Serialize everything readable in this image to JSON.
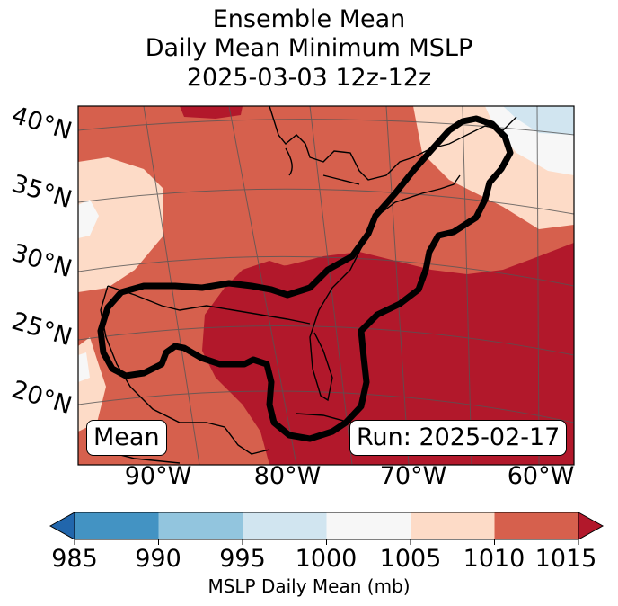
{
  "title": {
    "line1": "Ensemble Mean",
    "line2": "Daily Mean Minimum MSLP",
    "line3": "2025-03-03 12z-12z"
  },
  "map": {
    "lat_labels": [
      "40°N",
      "35°N",
      "30°N",
      "25°N",
      "20°N"
    ],
    "lon_labels": [
      "90°W",
      "80°W",
      "70°W",
      "60°W"
    ],
    "mean_box": "Mean",
    "run_box": "Run: 2025-02-17",
    "contour_color": "#000000",
    "coastline_color": "#000000"
  },
  "colorbar": {
    "ticks": [
      "985",
      "990",
      "995",
      "1000",
      "1005",
      "1010",
      "1015"
    ],
    "label": "MSLP Daily Mean (mb)",
    "colors": {
      "below": "#2166ac",
      "985-990": "#4393c3",
      "990-995": "#92c5de",
      "995-1000": "#d1e5f0",
      "1000-1005": "#f7f7f7",
      "1005-1010": "#fddbc7",
      "1010-1015": "#d6604d",
      "above": "#b2182b"
    }
  }
}
